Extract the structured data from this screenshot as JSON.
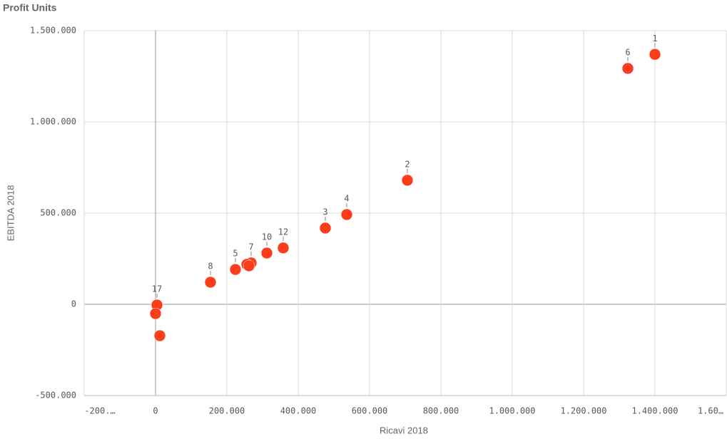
{
  "chart_data": {
    "type": "scatter",
    "title": "Profit Units",
    "x_label": "Ricavi 2018",
    "y_label": "EBITDA 2018",
    "x": [
      1400000,
      1324000,
      706000,
      536000,
      476000,
      358000,
      312000,
      268000,
      256000,
      262000,
      224000,
      154000,
      4000,
      0,
      12000
    ],
    "values": [
      1370000,
      1293000,
      680000,
      492000,
      418000,
      309000,
      281000,
      227000,
      219000,
      211000,
      191000,
      121000,
      -4000,
      -51000,
      -172000
    ],
    "point_labels": [
      "1",
      "6",
      "2",
      "4",
      "3",
      "12",
      "10",
      "7",
      null,
      null,
      "5",
      "8",
      "17",
      null,
      null
    ],
    "color": "#fc3d1a",
    "xlim": [
      -200000,
      1600000
    ],
    "xticks": [
      {
        "value": -200000,
        "label": "-200.…"
      },
      0,
      {
        "value": 200000,
        "label": "200.000"
      },
      {
        "value": 400000,
        "label": "400.000"
      },
      {
        "value": 600000,
        "label": "600.000"
      },
      {
        "value": 800000,
        "label": "800.000"
      },
      {
        "value": 1000000,
        "label": "1.000.000"
      },
      {
        "value": 1200000,
        "label": "1.200.000"
      },
      {
        "value": 1400000,
        "label": "1.400.000"
      },
      {
        "value": 1600000,
        "label": "1.60…"
      }
    ],
    "ylim": [
      -500000,
      1500000
    ],
    "yticks": [
      {
        "value": -500000,
        "label": "-500.000"
      },
      0,
      {
        "value": 500000,
        "label": "500.000"
      },
      {
        "value": 1000000,
        "label": "1.000.000"
      },
      {
        "value": 1500000,
        "label": "1.500.000"
      }
    ],
    "grid": true
  }
}
